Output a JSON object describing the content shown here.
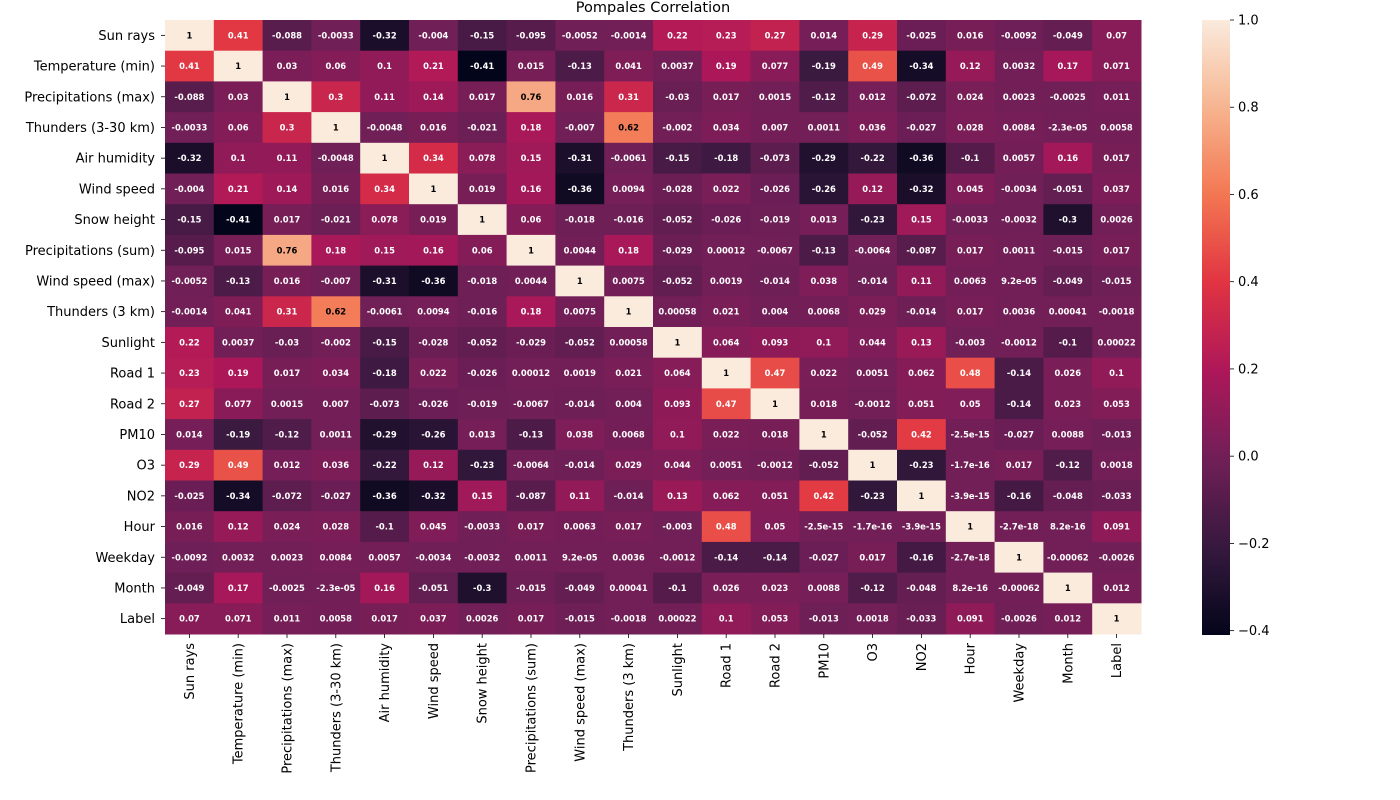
{
  "chart_data": {
    "type": "heatmap",
    "title": "Pompales Correlation",
    "labels": [
      "Sun rays",
      "Temperature (min)",
      "Precipitations (max)",
      "Thunders (3-30 km)",
      "Air humidity",
      "Wind speed",
      "Snow height",
      "Precipitations (sum)",
      "Wind speed (max)",
      "Thunders (3 km)",
      "Sunlight",
      "Road 1",
      "Road 2",
      "PM10",
      "O3",
      "NO2",
      "Hour",
      "Weekday",
      "Month",
      "Label"
    ],
    "values": [
      [
        1,
        0.41,
        -0.088,
        -0.0033,
        -0.32,
        -0.004,
        -0.15,
        -0.095,
        -0.0052,
        -0.0014,
        0.22,
        0.23,
        0.27,
        0.014,
        0.29,
        -0.025,
        0.016,
        -0.0092,
        -0.049,
        0.07
      ],
      [
        0.41,
        1,
        0.03,
        0.06,
        0.1,
        0.21,
        -0.41,
        0.015,
        -0.13,
        0.041,
        0.0037,
        0.19,
        0.077,
        -0.19,
        0.49,
        -0.34,
        0.12,
        0.0032,
        0.17,
        0.071
      ],
      [
        -0.088,
        0.03,
        1,
        0.3,
        0.11,
        0.14,
        0.017,
        0.76,
        0.016,
        0.31,
        -0.03,
        0.017,
        0.0015,
        -0.12,
        0.012,
        -0.072,
        0.024,
        0.0023,
        -0.0025,
        0.011
      ],
      [
        -0.0033,
        0.06,
        0.3,
        1,
        -0.0048,
        0.016,
        -0.021,
        0.18,
        -0.007,
        0.62,
        -0.002,
        0.034,
        0.007,
        0.0011,
        0.036,
        -0.027,
        0.028,
        0.0084,
        -2.3e-05,
        0.0058
      ],
      [
        -0.32,
        0.1,
        0.11,
        -0.0048,
        1,
        0.34,
        0.078,
        0.15,
        -0.31,
        -0.0061,
        -0.15,
        -0.18,
        -0.073,
        -0.29,
        -0.22,
        -0.36,
        -0.1,
        0.0057,
        0.16,
        0.017
      ],
      [
        -0.004,
        0.21,
        0.14,
        0.016,
        0.34,
        1,
        0.019,
        0.16,
        -0.36,
        0.0094,
        -0.028,
        0.022,
        -0.026,
        -0.26,
        0.12,
        -0.32,
        0.045,
        -0.0034,
        -0.051,
        0.037
      ],
      [
        -0.15,
        -0.41,
        0.017,
        -0.021,
        0.078,
        0.019,
        1,
        0.06,
        -0.018,
        -0.016,
        -0.052,
        -0.026,
        -0.019,
        0.013,
        -0.23,
        0.15,
        -0.0033,
        -0.0032,
        -0.3,
        0.0026
      ],
      [
        -0.095,
        0.015,
        0.76,
        0.18,
        0.15,
        0.16,
        0.06,
        1,
        0.0044,
        0.18,
        -0.029,
        0.00012,
        -0.0067,
        -0.13,
        -0.0064,
        -0.087,
        0.017,
        0.0011,
        -0.015,
        0.017
      ],
      [
        -0.0052,
        -0.13,
        0.016,
        -0.007,
        -0.31,
        -0.36,
        -0.018,
        0.0044,
        1,
        0.0075,
        -0.052,
        0.0019,
        -0.014,
        0.038,
        -0.014,
        0.11,
        0.0063,
        9.2e-05,
        -0.049,
        -0.015
      ],
      [
        -0.0014,
        0.041,
        0.31,
        0.62,
        -0.0061,
        0.0094,
        -0.016,
        0.18,
        0.0075,
        1,
        0.00058,
        0.021,
        0.004,
        0.0068,
        0.029,
        -0.014,
        0.017,
        0.0036,
        0.00041,
        -0.0018
      ],
      [
        0.22,
        0.0037,
        -0.03,
        -0.002,
        -0.15,
        -0.028,
        -0.052,
        -0.029,
        -0.052,
        0.00058,
        1,
        0.064,
        0.093,
        0.1,
        0.044,
        0.13,
        -0.003,
        -0.0012,
        -0.1,
        0.00022
      ],
      [
        0.23,
        0.19,
        0.017,
        0.034,
        -0.18,
        0.022,
        -0.026,
        0.00012,
        0.0019,
        0.021,
        0.064,
        1,
        0.47,
        0.022,
        0.0051,
        0.062,
        0.48,
        -0.14,
        0.026,
        0.1
      ],
      [
        0.27,
        0.077,
        0.0015,
        0.007,
        -0.073,
        -0.026,
        -0.019,
        -0.0067,
        -0.014,
        0.004,
        0.093,
        0.47,
        1,
        0.018,
        -0.0012,
        0.051,
        0.05,
        -0.14,
        0.023,
        0.053
      ],
      [
        0.014,
        -0.19,
        -0.12,
        0.0011,
        -0.29,
        -0.26,
        0.013,
        -0.13,
        0.038,
        0.0068,
        0.1,
        0.022,
        0.018,
        1,
        -0.052,
        0.42,
        -2.5e-15,
        -0.027,
        0.0088,
        -0.013
      ],
      [
        0.29,
        0.49,
        0.012,
        0.036,
        -0.22,
        0.12,
        -0.23,
        -0.0064,
        -0.014,
        0.029,
        0.044,
        0.0051,
        -0.0012,
        -0.052,
        1,
        -0.23,
        -1.7e-16,
        0.017,
        -0.12,
        0.0018
      ],
      [
        -0.025,
        -0.34,
        -0.072,
        -0.027,
        -0.36,
        -0.32,
        0.15,
        -0.087,
        0.11,
        -0.014,
        0.13,
        0.062,
        0.051,
        0.42,
        -0.23,
        1,
        -3.9e-15,
        -0.16,
        -0.048,
        -0.033
      ],
      [
        0.016,
        0.12,
        0.024,
        0.028,
        -0.1,
        0.045,
        -0.0033,
        0.017,
        0.0063,
        0.017,
        -0.003,
        0.48,
        0.05,
        -2.5e-15,
        -1.7e-16,
        -3.9e-15,
        1,
        -2.7e-18,
        8.2e-16,
        0.091
      ],
      [
        -0.0092,
        0.0032,
        0.0023,
        0.0084,
        0.0057,
        -0.0034,
        -0.0032,
        0.0011,
        9.2e-05,
        0.0036,
        -0.0012,
        -0.14,
        -0.14,
        -0.027,
        0.017,
        -0.16,
        -2.7e-18,
        1,
        -0.00062,
        -0.0026
      ],
      [
        -0.049,
        0.17,
        -0.0025,
        -2.3e-05,
        0.16,
        -0.051,
        -0.3,
        -0.015,
        -0.049,
        0.00041,
        -0.1,
        0.026,
        0.023,
        0.0088,
        -0.12,
        -0.048,
        8.2e-16,
        -0.00062,
        1,
        0.012
      ],
      [
        0.07,
        0.071,
        0.011,
        0.0058,
        0.017,
        0.037,
        0.0026,
        0.017,
        -0.015,
        -0.0018,
        0.00022,
        0.1,
        0.053,
        -0.013,
        0.0018,
        -0.033,
        0.091,
        -0.0026,
        0.012,
        1
      ]
    ],
    "display": [
      [
        "1",
        "0.41",
        "-0.088",
        "-0.0033",
        "-0.32",
        "-0.004",
        "-0.15",
        "-0.095",
        "-0.0052",
        "-0.0014",
        "0.22",
        "0.23",
        "0.27",
        "0.014",
        "0.29",
        "-0.025",
        "0.016",
        "-0.0092",
        "-0.049",
        "0.07"
      ],
      [
        "0.41",
        "1",
        "0.03",
        "0.06",
        "0.1",
        "0.21",
        "-0.41",
        "0.015",
        "-0.13",
        "0.041",
        "0.0037",
        "0.19",
        "0.077",
        "-0.19",
        "0.49",
        "-0.34",
        "0.12",
        "0.0032",
        "0.17",
        "0.071"
      ],
      [
        "-0.088",
        "0.03",
        "1",
        "0.3",
        "0.11",
        "0.14",
        "0.017",
        "0.76",
        "0.016",
        "0.31",
        "-0.03",
        "0.017",
        "0.0015",
        "-0.12",
        "0.012",
        "-0.072",
        "0.024",
        "0.0023",
        "-0.0025",
        "0.011"
      ],
      [
        "-0.0033",
        "0.06",
        "0.3",
        "1",
        "-0.0048",
        "0.016",
        "-0.021",
        "0.18",
        "-0.007",
        "0.62",
        "-0.002",
        "0.034",
        "0.007",
        "0.0011",
        "0.036",
        "-0.027",
        "0.028",
        "0.0084",
        "-2.3e-05",
        "0.0058"
      ],
      [
        "-0.32",
        "0.1",
        "0.11",
        "-0.0048",
        "1",
        "0.34",
        "0.078",
        "0.15",
        "-0.31",
        "-0.0061",
        "-0.15",
        "-0.18",
        "-0.073",
        "-0.29",
        "-0.22",
        "-0.36",
        "-0.1",
        "0.0057",
        "0.16",
        "0.017"
      ],
      [
        "-0.004",
        "0.21",
        "0.14",
        "0.016",
        "0.34",
        "1",
        "0.019",
        "0.16",
        "-0.36",
        "0.0094",
        "-0.028",
        "0.022",
        "-0.026",
        "-0.26",
        "0.12",
        "-0.32",
        "0.045",
        "-0.0034",
        "-0.051",
        "0.037"
      ],
      [
        "-0.15",
        "-0.41",
        "0.017",
        "-0.021",
        "0.078",
        "0.019",
        "1",
        "0.06",
        "-0.018",
        "-0.016",
        "-0.052",
        "-0.026",
        "-0.019",
        "0.013",
        "-0.23",
        "0.15",
        "-0.0033",
        "-0.0032",
        "-0.3",
        "0.0026"
      ],
      [
        "-0.095",
        "0.015",
        "0.76",
        "0.18",
        "0.15",
        "0.16",
        "0.06",
        "1",
        "0.0044",
        "0.18",
        "-0.029",
        "0.00012",
        "-0.0067",
        "-0.13",
        "-0.0064",
        "-0.087",
        "0.017",
        "0.0011",
        "-0.015",
        "0.017"
      ],
      [
        "-0.0052",
        "-0.13",
        "0.016",
        "-0.007",
        "-0.31",
        "-0.36",
        "-0.018",
        "0.0044",
        "1",
        "0.0075",
        "-0.052",
        "0.0019",
        "-0.014",
        "0.038",
        "-0.014",
        "0.11",
        "0.0063",
        "9.2e-05",
        "-0.049",
        "-0.015"
      ],
      [
        "-0.0014",
        "0.041",
        "0.31",
        "0.62",
        "-0.0061",
        "0.0094",
        "-0.016",
        "0.18",
        "0.0075",
        "1",
        "0.00058",
        "0.021",
        "0.004",
        "0.0068",
        "0.029",
        "-0.014",
        "0.017",
        "0.0036",
        "0.00041",
        "-0.0018"
      ],
      [
        "0.22",
        "0.0037",
        "-0.03",
        "-0.002",
        "-0.15",
        "-0.028",
        "-0.052",
        "-0.029",
        "-0.052",
        "0.00058",
        "1",
        "0.064",
        "0.093",
        "0.1",
        "0.044",
        "0.13",
        "-0.003",
        "-0.0012",
        "-0.1",
        "0.00022"
      ],
      [
        "0.23",
        "0.19",
        "0.017",
        "0.034",
        "-0.18",
        "0.022",
        "-0.026",
        "0.00012",
        "0.0019",
        "0.021",
        "0.064",
        "1",
        "0.47",
        "0.022",
        "0.0051",
        "0.062",
        "0.48",
        "-0.14",
        "0.026",
        "0.1"
      ],
      [
        "0.27",
        "0.077",
        "0.0015",
        "0.007",
        "-0.073",
        "-0.026",
        "-0.019",
        "-0.0067",
        "-0.014",
        "0.004",
        "0.093",
        "0.47",
        "1",
        "0.018",
        "-0.0012",
        "0.051",
        "0.05",
        "-0.14",
        "0.023",
        "0.053"
      ],
      [
        "0.014",
        "-0.19",
        "-0.12",
        "0.0011",
        "-0.29",
        "-0.26",
        "0.013",
        "-0.13",
        "0.038",
        "0.0068",
        "0.1",
        "0.022",
        "0.018",
        "1",
        "-0.052",
        "0.42",
        "-2.5e-15",
        "-0.027",
        "0.0088",
        "-0.013"
      ],
      [
        "0.29",
        "0.49",
        "0.012",
        "0.036",
        "-0.22",
        "0.12",
        "-0.23",
        "-0.0064",
        "-0.014",
        "0.029",
        "0.044",
        "0.0051",
        "-0.0012",
        "-0.052",
        "1",
        "-0.23",
        "-1.7e-16",
        "0.017",
        "-0.12",
        "0.0018"
      ],
      [
        "-0.025",
        "-0.34",
        "-0.072",
        "-0.027",
        "-0.36",
        "-0.32",
        "0.15",
        "-0.087",
        "0.11",
        "-0.014",
        "0.13",
        "0.062",
        "0.051",
        "0.42",
        "-0.23",
        "1",
        "-3.9e-15",
        "-0.16",
        "-0.048",
        "-0.033"
      ],
      [
        "0.016",
        "0.12",
        "0.024",
        "0.028",
        "-0.1",
        "0.045",
        "-0.0033",
        "0.017",
        "0.0063",
        "0.017",
        "-0.003",
        "0.48",
        "0.05",
        "-2.5e-15",
        "-1.7e-16",
        "-3.9e-15",
        "1",
        "-2.7e-18",
        "8.2e-16",
        "0.091"
      ],
      [
        "-0.0092",
        "0.0032",
        "0.0023",
        "0.0084",
        "0.0057",
        "-0.0034",
        "-0.0032",
        "0.0011",
        "9.2e-05",
        "0.0036",
        "-0.0012",
        "-0.14",
        "-0.14",
        "-0.027",
        "0.017",
        "-0.16",
        "-2.7e-18",
        "1",
        "-0.00062",
        "-0.0026"
      ],
      [
        "-0.049",
        "0.17",
        "-0.0025",
        "-2.3e-05",
        "0.16",
        "-0.051",
        "-0.3",
        "-0.015",
        "-0.049",
        "0.00041",
        "-0.1",
        "0.026",
        "0.023",
        "0.0088",
        "-0.12",
        "-0.048",
        "8.2e-16",
        "-0.00062",
        "1",
        "0.012"
      ],
      [
        "0.07",
        "0.071",
        "0.011",
        "0.0058",
        "0.017",
        "0.037",
        "0.0026",
        "0.017",
        "-0.015",
        "-0.0018",
        "0.00022",
        "0.1",
        "0.053",
        "-0.013",
        "0.0018",
        "-0.033",
        "0.091",
        "-0.0026",
        "0.012",
        "1"
      ]
    ],
    "colorbar": {
      "vmin": -0.41,
      "vmax": 1.0,
      "ticks": [
        1.0,
        0.8,
        0.6,
        0.4,
        0.2,
        0.0,
        -0.2,
        -0.4
      ],
      "tick_labels": [
        "1.0",
        "0.8",
        "0.6",
        "0.4",
        "0.2",
        "0.0",
        "−0.2",
        "−0.4"
      ],
      "colormap": "rocket",
      "colormap_stops": [
        "#03051a",
        "#36193e",
        "#701f57",
        "#ad1759",
        "#e13342",
        "#f37651",
        "#f6b48f",
        "#faebdd"
      ]
    },
    "grid": false
  }
}
